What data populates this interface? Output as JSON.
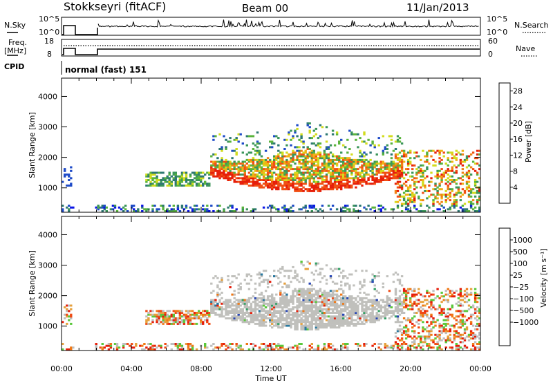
{
  "header": {
    "title": "Stokkseyri (fitACF)",
    "beam": "Beam 00",
    "date": "11/Jan/2013"
  },
  "top_panels": {
    "nsky": {
      "label": "N.Sky",
      "ticks": [
        "10^5",
        "10^0"
      ],
      "right_ticks": [
        "10^5",
        "10^0"
      ],
      "right_label": "N.Search"
    },
    "freq": {
      "label_line1": "Freq.",
      "label_line2": "[MHz]",
      "ticks": [
        "18",
        "8"
      ],
      "right_ticks": [
        "60",
        "0"
      ],
      "right_label": "Nave"
    },
    "cpid": {
      "label": "CPID",
      "value": "normal (fast) 151"
    }
  },
  "colors": {
    "power": [
      "#0a14e6",
      "#1e4bc8",
      "#2d7873",
      "#3c965a",
      "#5ab43c",
      "#d2dc1e",
      "#f0b414",
      "#f08214",
      "#f05014",
      "#e61e0a"
    ],
    "velocity": [
      "#2846b4",
      "#2878a0",
      "#32a064",
      "#5ac83c",
      "#bebebe",
      "#bebebe",
      "#e6a03c",
      "#f07814",
      "#f04b14",
      "#e61e0a"
    ],
    "gray": "#c0c0bc"
  },
  "chart_data": [
    {
      "type": "heatmap",
      "title": "",
      "xlabel": "Time UT",
      "ylabel": "Slant Range [km]",
      "x_ticks": [
        "00:00",
        "04:00",
        "08:00",
        "12:00",
        "16:00",
        "20:00",
        "00:00"
      ],
      "xlim": [
        0,
        24
      ],
      "y_ticks": [
        "1000",
        "2000",
        "3000",
        "4000"
      ],
      "ylim": [
        200,
        4600
      ],
      "colorbar": {
        "label": "Power [dB]",
        "ticks": [
          "4",
          "8",
          "12",
          "16",
          "20",
          "24",
          "28"
        ],
        "range": [
          0,
          30
        ]
      }
    },
    {
      "type": "heatmap",
      "title": "",
      "xlabel": "Time UT",
      "ylabel": "Slant Range [km]",
      "x_ticks": [
        "00:00",
        "04:00",
        "08:00",
        "12:00",
        "16:00",
        "20:00",
        "00:00"
      ],
      "xlim": [
        0,
        24
      ],
      "y_ticks": [
        "1000",
        "2000",
        "3000",
        "4000"
      ],
      "ylim": [
        200,
        4600
      ],
      "colorbar": {
        "label": "Velocity [m s⁻¹]",
        "ticks": [
          "1000",
          "500",
          "100",
          "25",
          "−25",
          "−100",
          "−500",
          "−1000"
        ]
      }
    }
  ],
  "footer": {
    "xlabel": "Time UT"
  }
}
